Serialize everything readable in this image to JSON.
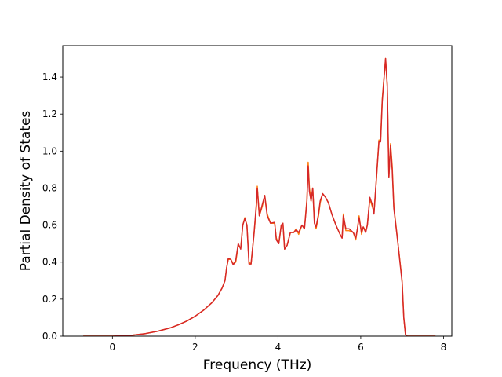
{
  "chart_data": {
    "type": "line",
    "title": "",
    "xlabel": "Frequency (THz)",
    "ylabel": "Partial Density of States",
    "xlim": [
      -1.2,
      8.2
    ],
    "ylim": [
      0.0,
      1.57
    ],
    "xticks": [
      0,
      2,
      4,
      6,
      8
    ],
    "yticks": [
      0.0,
      0.2,
      0.4,
      0.6,
      0.8,
      1.0,
      1.2,
      1.4
    ],
    "grid": false,
    "legend": "none",
    "series": [
      {
        "color": "#ff7f0e",
        "points": [
          [
            -0.7,
            0
          ],
          [
            0,
            0
          ],
          [
            0.2,
            0.002
          ],
          [
            0.5,
            0.006
          ],
          [
            0.8,
            0.014
          ],
          [
            1.1,
            0.027
          ],
          [
            1.4,
            0.045
          ],
          [
            1.6,
            0.062
          ],
          [
            1.8,
            0.082
          ],
          [
            2.0,
            0.108
          ],
          [
            2.2,
            0.14
          ],
          [
            2.4,
            0.18
          ],
          [
            2.55,
            0.22
          ],
          [
            2.65,
            0.26
          ],
          [
            2.72,
            0.3
          ],
          [
            2.76,
            0.37
          ],
          [
            2.8,
            0.415
          ],
          [
            2.86,
            0.415
          ],
          [
            2.92,
            0.39
          ],
          [
            2.98,
            0.4
          ],
          [
            3.04,
            0.49
          ],
          [
            3.1,
            0.475
          ],
          [
            3.15,
            0.6
          ],
          [
            3.2,
            0.64
          ],
          [
            3.25,
            0.6
          ],
          [
            3.3,
            0.4
          ],
          [
            3.35,
            0.39
          ],
          [
            3.42,
            0.55
          ],
          [
            3.48,
            0.7
          ],
          [
            3.5,
            0.81
          ],
          [
            3.55,
            0.65
          ],
          [
            3.62,
            0.7
          ],
          [
            3.68,
            0.76
          ],
          [
            3.74,
            0.66
          ],
          [
            3.82,
            0.61
          ],
          [
            3.92,
            0.61
          ],
          [
            3.96,
            0.53
          ],
          [
            4.02,
            0.5
          ],
          [
            4.08,
            0.6
          ],
          [
            4.12,
            0.61
          ],
          [
            4.16,
            0.47
          ],
          [
            4.22,
            0.49
          ],
          [
            4.3,
            0.56
          ],
          [
            4.38,
            0.56
          ],
          [
            4.44,
            0.58
          ],
          [
            4.5,
            0.55
          ],
          [
            4.58,
            0.6
          ],
          [
            4.64,
            0.58
          ],
          [
            4.7,
            0.74
          ],
          [
            4.73,
            0.94
          ],
          [
            4.76,
            0.8
          ],
          [
            4.8,
            0.73
          ],
          [
            4.84,
            0.8
          ],
          [
            4.88,
            0.62
          ],
          [
            4.92,
            0.58
          ],
          [
            4.98,
            0.65
          ],
          [
            5.02,
            0.72
          ],
          [
            5.08,
            0.77
          ],
          [
            5.15,
            0.75
          ],
          [
            5.22,
            0.72
          ],
          [
            5.3,
            0.66
          ],
          [
            5.4,
            0.6
          ],
          [
            5.5,
            0.55
          ],
          [
            5.55,
            0.53
          ],
          [
            5.58,
            0.66
          ],
          [
            5.64,
            0.57
          ],
          [
            5.72,
            0.57
          ],
          [
            5.82,
            0.56
          ],
          [
            5.88,
            0.52
          ],
          [
            5.92,
            0.58
          ],
          [
            5.96,
            0.65
          ],
          [
            6.02,
            0.55
          ],
          [
            6.06,
            0.59
          ],
          [
            6.12,
            0.57
          ],
          [
            6.16,
            0.6
          ],
          [
            6.22,
            0.74
          ],
          [
            6.28,
            0.7
          ],
          [
            6.32,
            0.67
          ],
          [
            6.38,
            0.85
          ],
          [
            6.44,
            1.06
          ],
          [
            6.48,
            1.06
          ],
          [
            6.52,
            1.28
          ],
          [
            6.6,
            1.5
          ],
          [
            6.64,
            1.35
          ],
          [
            6.68,
            0.86
          ],
          [
            6.72,
            1.04
          ],
          [
            6.76,
            0.92
          ],
          [
            6.8,
            0.7
          ],
          [
            6.9,
            0.5
          ],
          [
            7.0,
            0.3
          ],
          [
            7.04,
            0.1
          ],
          [
            7.08,
            0.01
          ],
          [
            7.12,
            0
          ],
          [
            7.8,
            0
          ]
        ]
      },
      {
        "color": "#d62728",
        "points": [
          [
            -0.7,
            0
          ],
          [
            0,
            0
          ],
          [
            0.2,
            0.002
          ],
          [
            0.5,
            0.006
          ],
          [
            0.8,
            0.014
          ],
          [
            1.1,
            0.027
          ],
          [
            1.4,
            0.045
          ],
          [
            1.6,
            0.062
          ],
          [
            1.8,
            0.082
          ],
          [
            2.0,
            0.108
          ],
          [
            2.2,
            0.14
          ],
          [
            2.4,
            0.18
          ],
          [
            2.55,
            0.22
          ],
          [
            2.65,
            0.26
          ],
          [
            2.72,
            0.3
          ],
          [
            2.76,
            0.37
          ],
          [
            2.8,
            0.42
          ],
          [
            2.86,
            0.415
          ],
          [
            2.92,
            0.385
          ],
          [
            2.98,
            0.41
          ],
          [
            3.04,
            0.5
          ],
          [
            3.1,
            0.47
          ],
          [
            3.15,
            0.6
          ],
          [
            3.2,
            0.635
          ],
          [
            3.25,
            0.6
          ],
          [
            3.3,
            0.39
          ],
          [
            3.35,
            0.39
          ],
          [
            3.42,
            0.55
          ],
          [
            3.48,
            0.72
          ],
          [
            3.5,
            0.8
          ],
          [
            3.55,
            0.65
          ],
          [
            3.62,
            0.71
          ],
          [
            3.68,
            0.76
          ],
          [
            3.74,
            0.65
          ],
          [
            3.82,
            0.61
          ],
          [
            3.92,
            0.615
          ],
          [
            3.96,
            0.52
          ],
          [
            4.02,
            0.5
          ],
          [
            4.08,
            0.6
          ],
          [
            4.12,
            0.61
          ],
          [
            4.16,
            0.47
          ],
          [
            4.22,
            0.49
          ],
          [
            4.3,
            0.56
          ],
          [
            4.38,
            0.56
          ],
          [
            4.44,
            0.575
          ],
          [
            4.5,
            0.56
          ],
          [
            4.58,
            0.6
          ],
          [
            4.64,
            0.58
          ],
          [
            4.7,
            0.73
          ],
          [
            4.73,
            0.92
          ],
          [
            4.76,
            0.78
          ],
          [
            4.8,
            0.73
          ],
          [
            4.84,
            0.8
          ],
          [
            4.88,
            0.61
          ],
          [
            4.92,
            0.59
          ],
          [
            4.98,
            0.66
          ],
          [
            5.02,
            0.73
          ],
          [
            5.08,
            0.77
          ],
          [
            5.15,
            0.75
          ],
          [
            5.22,
            0.72
          ],
          [
            5.3,
            0.66
          ],
          [
            5.4,
            0.6
          ],
          [
            5.5,
            0.55
          ],
          [
            5.55,
            0.53
          ],
          [
            5.58,
            0.65
          ],
          [
            5.64,
            0.58
          ],
          [
            5.72,
            0.58
          ],
          [
            5.82,
            0.56
          ],
          [
            5.88,
            0.53
          ],
          [
            5.92,
            0.58
          ],
          [
            5.96,
            0.64
          ],
          [
            6.02,
            0.56
          ],
          [
            6.06,
            0.59
          ],
          [
            6.12,
            0.56
          ],
          [
            6.16,
            0.6
          ],
          [
            6.22,
            0.75
          ],
          [
            6.28,
            0.71
          ],
          [
            6.32,
            0.66
          ],
          [
            6.38,
            0.86
          ],
          [
            6.44,
            1.05
          ],
          [
            6.48,
            1.05
          ],
          [
            6.52,
            1.27
          ],
          [
            6.6,
            1.5
          ],
          [
            6.64,
            1.36
          ],
          [
            6.68,
            0.86
          ],
          [
            6.72,
            1.03
          ],
          [
            6.76,
            0.9
          ],
          [
            6.8,
            0.69
          ],
          [
            6.9,
            0.5
          ],
          [
            7.0,
            0.29
          ],
          [
            7.04,
            0.1
          ],
          [
            7.08,
            0.01
          ],
          [
            7.12,
            0
          ],
          [
            7.8,
            0
          ]
        ]
      }
    ]
  }
}
